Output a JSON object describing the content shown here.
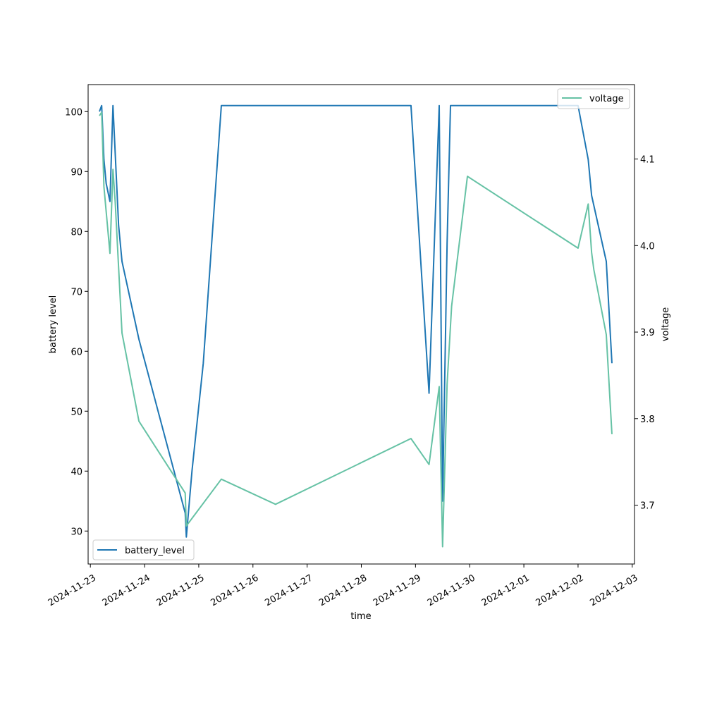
{
  "chart_data": {
    "type": "line",
    "title": "",
    "xlabel": "time",
    "ylabel_left": "battery level",
    "ylabel_right": "voltage",
    "x_ticks": [
      "2024-11-23",
      "2024-11-24",
      "2024-11-25",
      "2024-11-26",
      "2024-11-27",
      "2024-11-28",
      "2024-11-29",
      "2024-11-30",
      "2024-12-01",
      "2024-12-02",
      "2024-12-03"
    ],
    "xlim": [
      "2024-11-22T23:00",
      "2024-12-03T01:00"
    ],
    "y_left": {
      "lim": [
        24.5,
        104.5
      ],
      "ticks": [
        30,
        40,
        50,
        60,
        70,
        80,
        90,
        100
      ]
    },
    "y_right": {
      "lim": [
        3.632,
        4.186
      ],
      "ticks": [
        3.7,
        3.8,
        3.9,
        4.0,
        4.1
      ]
    },
    "grid": false,
    "legends": [
      {
        "entry": "battery_level",
        "placement": "lower-left"
      },
      {
        "entry": "voltage",
        "placement": "upper-right"
      }
    ],
    "series": [
      {
        "name": "battery_level",
        "axis": "left",
        "color": "#1f77b4",
        "points": [
          [
            "2024-11-23T04:00",
            100
          ],
          [
            "2024-11-23T05:00",
            101
          ],
          [
            "2024-11-23T06:00",
            92
          ],
          [
            "2024-11-23T07:00",
            88
          ],
          [
            "2024-11-23T08:40",
            85
          ],
          [
            "2024-11-23T10:00",
            101
          ],
          [
            "2024-11-23T12:30",
            81
          ],
          [
            "2024-11-23T14:00",
            75
          ],
          [
            "2024-11-23T21:30",
            62
          ],
          [
            "2024-11-24T18:00",
            33
          ],
          [
            "2024-11-24T18:30",
            29
          ],
          [
            "2024-11-24T21:00",
            40
          ],
          [
            "2024-11-25T02:00",
            58
          ],
          [
            "2024-11-25T10:00",
            101
          ],
          [
            "2024-11-28T22:00",
            101
          ],
          [
            "2024-11-29T06:00",
            53
          ],
          [
            "2024-11-29T10:30",
            101
          ],
          [
            "2024-11-29T12:00",
            35
          ],
          [
            "2024-11-29T14:00",
            78
          ],
          [
            "2024-11-29T15:30",
            101
          ],
          [
            "2024-12-02T00:00",
            101
          ],
          [
            "2024-12-02T04:30",
            92
          ],
          [
            "2024-12-02T05:00",
            90
          ],
          [
            "2024-12-02T06:00",
            86
          ],
          [
            "2024-12-02T12:30",
            75
          ],
          [
            "2024-12-02T15:00",
            58
          ]
        ]
      },
      {
        "name": "voltage",
        "axis": "right",
        "color": "#66c2a5",
        "points": [
          [
            "2024-11-23T04:00",
            4.15
          ],
          [
            "2024-11-23T05:00",
            4.154
          ],
          [
            "2024-11-23T06:00",
            4.068
          ],
          [
            "2024-11-23T08:40",
            3.991
          ],
          [
            "2024-11-23T10:00",
            4.088
          ],
          [
            "2024-11-23T11:00",
            4.05
          ],
          [
            "2024-11-23T14:00",
            3.899
          ],
          [
            "2024-11-23T21:30",
            3.797
          ],
          [
            "2024-11-24T18:00",
            3.714
          ],
          [
            "2024-11-24T18:30",
            3.676
          ],
          [
            "2024-11-25T10:00",
            3.73
          ],
          [
            "2024-11-26T10:00",
            3.701
          ],
          [
            "2024-11-28T22:00",
            3.777
          ],
          [
            "2024-11-29T06:00",
            3.747
          ],
          [
            "2024-11-29T10:30",
            3.837
          ],
          [
            "2024-11-29T12:00",
            3.652
          ],
          [
            "2024-11-29T14:00",
            3.84
          ],
          [
            "2024-11-29T16:00",
            3.93
          ],
          [
            "2024-11-29T23:00",
            4.08
          ],
          [
            "2024-12-02T00:00",
            3.997
          ],
          [
            "2024-12-02T04:30",
            4.048
          ],
          [
            "2024-12-02T06:00",
            3.992
          ],
          [
            "2024-12-02T07:00",
            3.972
          ],
          [
            "2024-12-02T12:30",
            3.897
          ],
          [
            "2024-12-02T15:00",
            3.782
          ]
        ]
      }
    ]
  }
}
